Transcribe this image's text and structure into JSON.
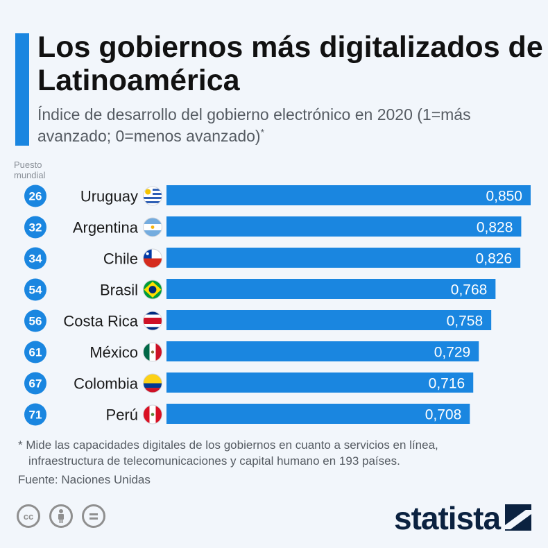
{
  "header": {
    "title": "Los gobiernos más digitalizados de Latinoamérica",
    "subtitle": "Índice de desarrollo del gobierno electrónico en 2020 (1=más avanzado; 0=menos avanzado)",
    "subtitle_marker": "*",
    "rank_label_line1": "Puesto",
    "rank_label_line2": "mundial"
  },
  "colors": {
    "bar": "#1a86e0",
    "rank_circle": "#1a86e0",
    "accent": "#1a86e0",
    "value_text": "#ffffff"
  },
  "chart_data": {
    "type": "bar",
    "orientation": "horizontal",
    "categories": [
      "Uruguay",
      "Argentina",
      "Chile",
      "Brasil",
      "Costa Rica",
      "México",
      "Colombia",
      "Perú"
    ],
    "values": [
      0.85,
      0.828,
      0.826,
      0.768,
      0.758,
      0.729,
      0.716,
      0.708
    ],
    "value_labels": [
      "0,850",
      "0,828",
      "0,826",
      "0,768",
      "0,758",
      "0,729",
      "0,716",
      "0,708"
    ],
    "ranks": [
      "26",
      "32",
      "34",
      "54",
      "56",
      "61",
      "67",
      "71"
    ],
    "flags": [
      "uruguay-flag",
      "argentina-flag",
      "chile-flag",
      "brazil-flag",
      "costa-rica-flag",
      "mexico-flag",
      "colombia-flag",
      "peru-flag"
    ],
    "xlim": [
      0,
      0.85
    ]
  },
  "footer": {
    "footnote_line1": "* Mide las capacidades digitales de los gobiernos en cuanto a servicios en línea,",
    "footnote_line2": "infraestructura de telecomunicaciones y capital humano en 193 países.",
    "source": "Fuente: Naciones Unidas",
    "cc_icons": [
      "cc-icon",
      "attribution-icon",
      "no-derivatives-icon"
    ],
    "cc_glyphs": [
      "cc",
      "=",
      ""
    ],
    "logo": "statista"
  }
}
